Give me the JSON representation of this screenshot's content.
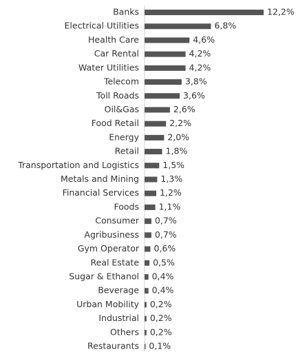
{
  "chart_data": {
    "type": "barh",
    "categories": [
      "Banks",
      "Electrical Utilities",
      "Health Care",
      "Car Rental",
      "Water Utilities",
      "Telecom",
      "Toll Roads",
      "Oil&Gas",
      "Food Retail",
      "Energy",
      "Retail",
      "Transportation and Logistics",
      "Metals and Mining",
      "Financial Services",
      "Foods",
      "Consumer",
      "Agribusiness",
      "Gym Operator",
      "Real Estate",
      "Sugar & Ethanol",
      "Beverage",
      "Urban Mobility",
      "Industrial",
      "Others",
      "Restaurants"
    ],
    "values": [
      12.2,
      6.8,
      4.6,
      4.2,
      4.2,
      3.8,
      3.6,
      2.6,
      2.2,
      2.0,
      1.8,
      1.5,
      1.3,
      1.2,
      1.1,
      0.7,
      0.7,
      0.6,
      0.5,
      0.4,
      0.4,
      0.2,
      0.2,
      0.2,
      0.1
    ],
    "value_labels": [
      "12,2%",
      "6,8%",
      "4,6%",
      "4,2%",
      "4,2%",
      "3,8%",
      "3,6%",
      "2,6%",
      "2,2%",
      "2,0%",
      "1,8%",
      "1,5%",
      "1,3%",
      "1,2%",
      "1,1%",
      "0,7%",
      "0,7%",
      "0,6%",
      "0,5%",
      "0,4%",
      "0,4%",
      "0,2%",
      "0,2%",
      "0,2%",
      "0,1%"
    ],
    "color": "#555555"
  }
}
